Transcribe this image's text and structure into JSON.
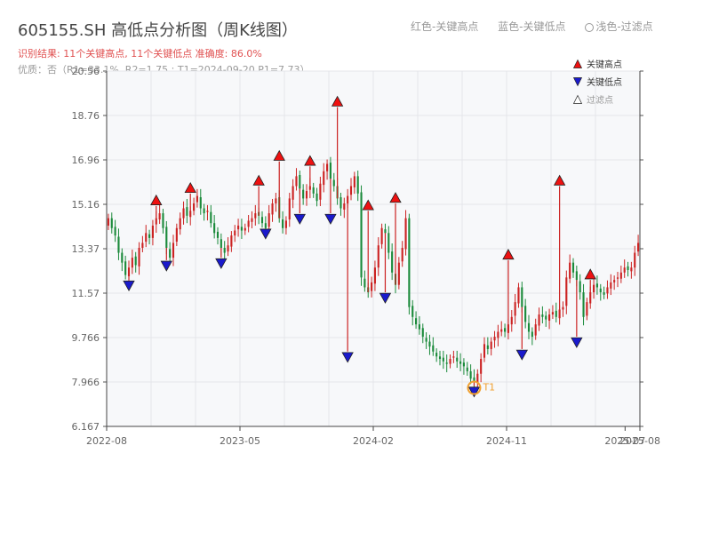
{
  "header": {
    "title": "605155.SH 高低点分析图（周K线图）",
    "result_line": "识别结果: 11个关键高点, 11个关键低点   准确度: 86.0%",
    "quality_line": "优质：否（R1=33.1%, R2=1.75 ; T1=2024-09-20 P1=7.73）",
    "legend_red": "红色-关键高点",
    "legend_blue": "蓝色-关键低点",
    "legend_light": "浅色-过滤点"
  },
  "colors": {
    "up": "#cc2222",
    "down": "#1a8a3a",
    "high_marker": "#ee1111",
    "low_marker": "#1a1acc",
    "t1": "#f0a030",
    "plot_bg": "#f7f8fa",
    "grid": "#e4e6ea"
  },
  "chart_data": {
    "type": "candlestick",
    "title": "605155.SH 高低点分析图（周K线图）",
    "ylim": [
      6.167,
      20.56
    ],
    "yticks": [
      "20.56",
      "18.76",
      "16.96",
      "15.16",
      "13.37",
      "11.57",
      "9.766",
      "7.966",
      "6.167"
    ],
    "xticks": [
      "2022-08",
      "2023-05",
      "2024-02",
      "2024-11",
      "2025-07",
      "2025-08"
    ],
    "x_start": "2022-08",
    "x_end": "2025-08",
    "legend": {
      "position": "top-right",
      "entries": [
        "关键高点",
        "关键低点",
        "过滤点"
      ]
    },
    "annotation": {
      "label": "T1",
      "date": "2024-09-20",
      "price": 7.73
    },
    "ohlc_close": [
      14.6,
      14.2,
      13.9,
      13.2,
      12.8,
      12.3,
      12.6,
      13.0,
      12.7,
      13.4,
      13.6,
      14.0,
      13.8,
      14.3,
      14.6,
      14.8,
      14.2,
      13.4,
      13.0,
      13.6,
      14.2,
      14.6,
      15.0,
      14.7,
      14.9,
      15.2,
      15.5,
      15.0,
      14.8,
      14.9,
      14.4,
      14.0,
      13.8,
      13.4,
      13.2,
      13.5,
      13.9,
      14.1,
      14.3,
      14.1,
      14.2,
      14.5,
      14.6,
      14.8,
      14.7,
      14.4,
      14.2,
      14.8,
      15.2,
      15.4,
      14.6,
      14.2,
      14.5,
      15.4,
      15.9,
      16.3,
      15.8,
      15.4,
      15.7,
      15.9,
      15.6,
      15.3,
      16.0,
      16.5,
      16.8,
      16.2,
      15.9,
      15.4,
      15.0,
      15.2,
      15.5,
      15.9,
      16.3,
      15.6,
      12.2,
      11.8,
      11.6,
      12.0,
      12.6,
      13.5,
      14.2,
      14.0,
      13.2,
      12.4,
      11.9,
      12.8,
      13.4,
      14.6,
      11.0,
      10.6,
      10.3,
      10.1,
      9.8,
      9.6,
      9.4,
      9.2,
      9.0,
      8.9,
      8.8,
      8.7,
      8.9,
      9.0,
      8.8,
      8.7,
      8.6,
      8.4,
      8.1,
      8.0,
      8.3,
      8.9,
      9.5,
      9.3,
      9.6,
      9.8,
      10.0,
      10.1,
      10.0,
      10.3,
      10.6,
      11.2,
      11.8,
      11.0,
      10.4,
      10.0,
      9.8,
      10.3,
      10.7,
      10.6,
      10.5,
      10.7,
      10.8,
      10.6,
      10.9,
      11.0,
      12.2,
      12.8,
      12.4,
      12.1,
      11.6,
      10.6,
      11.2,
      11.6,
      11.9,
      11.8,
      11.6,
      11.5,
      11.8,
      12.0,
      12.1,
      12.2,
      12.4,
      12.6,
      12.5,
      12.6,
      13.2,
      13.6
    ],
    "key_highs": [
      {
        "idx": 14,
        "price": 15.1
      },
      {
        "idx": 24,
        "price": 15.6
      },
      {
        "idx": 44,
        "price": 15.9
      },
      {
        "idx": 50,
        "price": 16.9
      },
      {
        "idx": 59,
        "price": 16.7
      },
      {
        "idx": 67,
        "price": 19.1
      },
      {
        "idx": 76,
        "price": 14.9
      },
      {
        "idx": 84,
        "price": 15.2
      },
      {
        "idx": 117,
        "price": 12.9
      },
      {
        "idx": 132,
        "price": 15.9
      },
      {
        "idx": 141,
        "price": 12.1
      }
    ],
    "key_lows": [
      {
        "idx": 6,
        "price": 12.1
      },
      {
        "idx": 17,
        "price": 12.9
      },
      {
        "idx": 33,
        "price": 13.0
      },
      {
        "idx": 46,
        "price": 14.2
      },
      {
        "idx": 56,
        "price": 14.8
      },
      {
        "idx": 65,
        "price": 14.8
      },
      {
        "idx": 70,
        "price": 9.2
      },
      {
        "idx": 81,
        "price": 11.6
      },
      {
        "idx": 107,
        "price": 7.8
      },
      {
        "idx": 121,
        "price": 9.3
      },
      {
        "idx": 137,
        "price": 9.8
      }
    ]
  }
}
